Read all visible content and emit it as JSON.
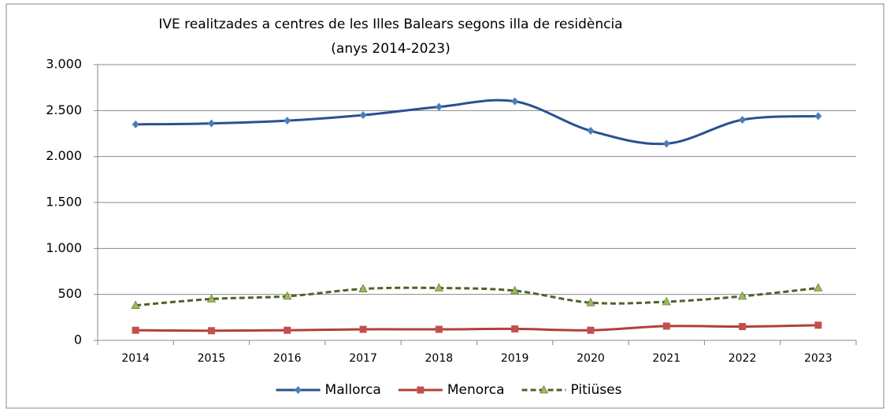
{
  "chart_data": {
    "type": "line",
    "title": "IVE realitzades a centres de les Illes Balears segons illa de residència",
    "subtitle": "(anys 2014-2023)",
    "categories": [
      "2014",
      "2015",
      "2016",
      "2017",
      "2018",
      "2019",
      "2020",
      "2021",
      "2022",
      "2023"
    ],
    "series": [
      {
        "name": "Mallorca",
        "color": "#2a5191",
        "marker_color": "#4a7ebb",
        "marker": "diamond",
        "dashed": false,
        "values": [
          2350,
          2360,
          2390,
          2450,
          2540,
          2600,
          2280,
          2140,
          2400,
          2440
        ]
      },
      {
        "name": "Menorca",
        "color": "#b33f3c",
        "marker_color": "#c0504d",
        "marker": "square",
        "dashed": false,
        "values": [
          110,
          105,
          110,
          120,
          120,
          125,
          110,
          155,
          150,
          165
        ]
      },
      {
        "name": "Pitiüses",
        "color": "#4f6228",
        "marker_color": "#9bbb59",
        "marker": "triangle",
        "dashed": true,
        "values": [
          380,
          450,
          480,
          560,
          570,
          540,
          410,
          420,
          480,
          570
        ]
      }
    ],
    "ylim": [
      0,
      3000
    ],
    "yticks": [
      0,
      500,
      {
        "value": 1000,
        "label": "1.000"
      },
      {
        "value": 1500,
        "label": "1.500"
      },
      {
        "value": 2000,
        "label": "2.000"
      },
      {
        "value": 2500,
        "label": "2.500"
      },
      {
        "value": 3000,
        "label": "3.000"
      }
    ],
    "grid": true,
    "smooth": true,
    "legend": "bottom"
  }
}
